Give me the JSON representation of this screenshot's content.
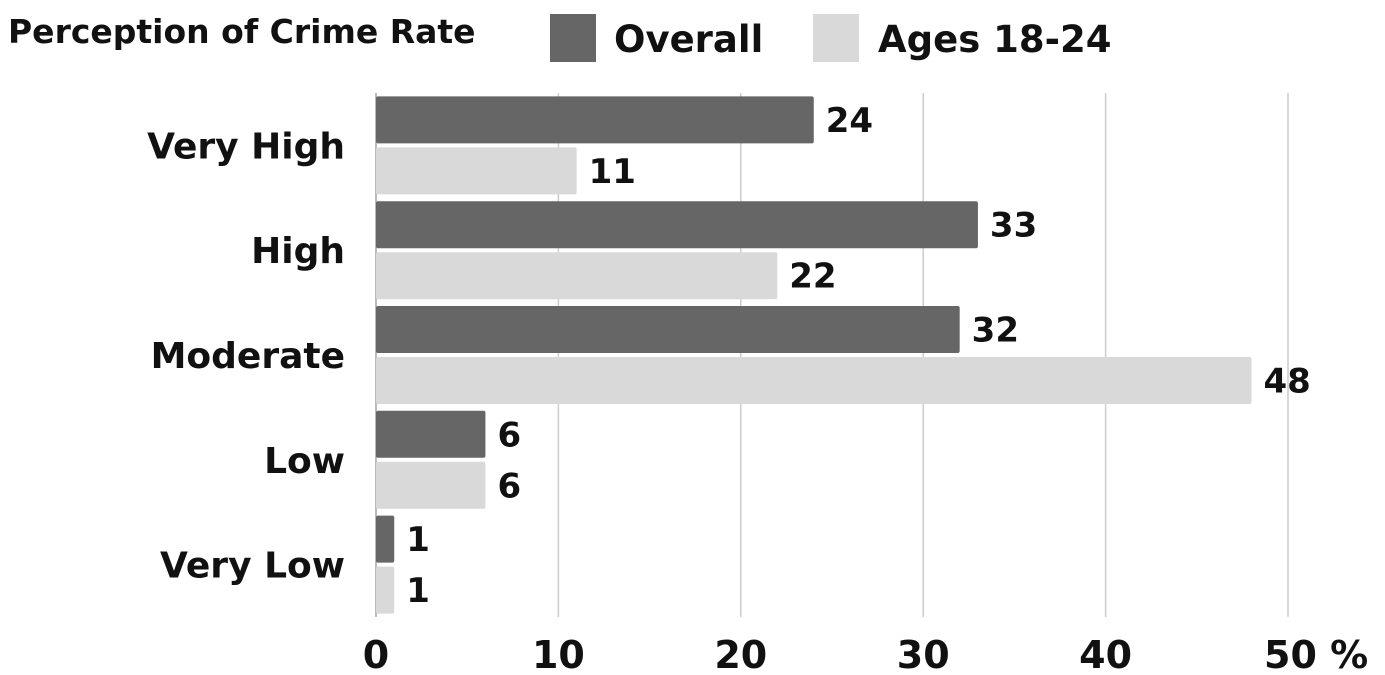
{
  "chart_data": {
    "type": "bar",
    "orientation": "horizontal",
    "title": "Perception of Crime Rate",
    "categories": [
      "Very High",
      "High",
      "Moderate",
      "Low",
      "Very Low"
    ],
    "series": [
      {
        "name": "Overall",
        "values": [
          24,
          33,
          32,
          6,
          1
        ],
        "color": "#666666"
      },
      {
        "name": "Ages 18-24",
        "values": [
          11,
          22,
          48,
          6,
          1
        ],
        "color": "#d9d9d9"
      }
    ],
    "xlim": [
      0,
      50
    ],
    "xticks": [
      0,
      10,
      20,
      30,
      40,
      50
    ],
    "tick_labels": [
      "0",
      "10",
      "20",
      "30",
      "40",
      "50 %"
    ],
    "grid": "vertical",
    "grid_color": "#cccccc",
    "legend_position": "top",
    "data_labels": true
  }
}
